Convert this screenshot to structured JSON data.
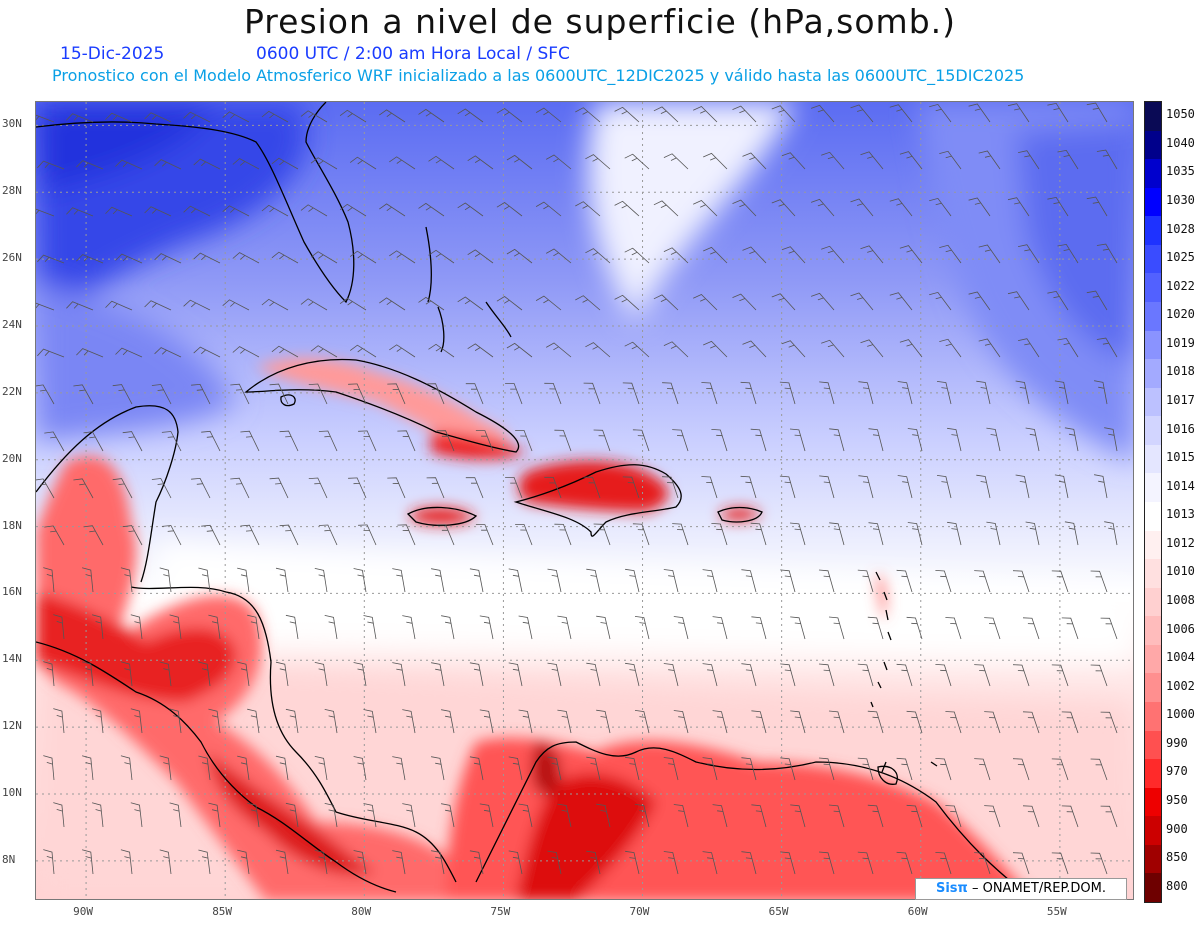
{
  "header": {
    "title": "Presion a nivel de superficie (hPa,somb.)",
    "date": "15-Dic-2025",
    "time": "0600 UTC / 2:00 am Hora Local / SFC",
    "model_info": "Pronostico con el Modelo Atmosferico WRF inicializado a las 0600UTC_12DIC2025 y válido hasta las  0600UTC_15DIC2025"
  },
  "axes": {
    "lat_labels": [
      "30N",
      "28N",
      "26N",
      "24N",
      "22N",
      "20N",
      "18N",
      "16N",
      "14N",
      "12N",
      "10N",
      "8N"
    ],
    "lat_values": [
      30,
      28,
      26,
      24,
      22,
      20,
      18,
      16,
      14,
      12,
      10,
      8
    ],
    "lon_labels": [
      "90W",
      "85W",
      "80W",
      "75W",
      "70W",
      "65W",
      "60W",
      "55W"
    ],
    "lon_values": [
      -90,
      -85,
      -80,
      -75,
      -70,
      -65,
      -60,
      -55
    ],
    "lon_range": [
      -91.8,
      -52.3
    ],
    "lat_range": [
      6.8,
      30.7
    ]
  },
  "legend": {
    "labels": [
      "1050",
      "1040",
      "1035",
      "1030",
      "1028",
      "1025",
      "1022",
      "1020",
      "1019",
      "1018",
      "1017",
      "1016",
      "1015",
      "1014",
      "1013",
      "1012",
      "1010",
      "1008",
      "1006",
      "1004",
      "1002",
      "1000",
      "990",
      "970",
      "950",
      "900",
      "850",
      "800"
    ],
    "colors": [
      "#0a0a55",
      "#00008b",
      "#0000cd",
      "#0000ff",
      "#1e32ff",
      "#3a4cff",
      "#5261ff",
      "#6a77ff",
      "#8a93ff",
      "#a3aaff",
      "#bcc1ff",
      "#d2d5ff",
      "#e4e6ff",
      "#f4f4ff",
      "#ffffff",
      "#fff0f0",
      "#ffe0e0",
      "#ffd0d0",
      "#ffbcbc",
      "#ffa8a8",
      "#ff8f8f",
      "#ff7272",
      "#ff5050",
      "#ff2a2a",
      "#ee0000",
      "#cc0000",
      "#a00000",
      "#6e0000"
    ]
  },
  "credit": {
    "logo": "Sisπ",
    "text": "– ONAMET/REP.DOM."
  },
  "colors": {
    "high_pressure": "#4a5cf0",
    "low_pressure": "#ff3030",
    "coastline": "#000000",
    "wind_barb": "#555555"
  }
}
